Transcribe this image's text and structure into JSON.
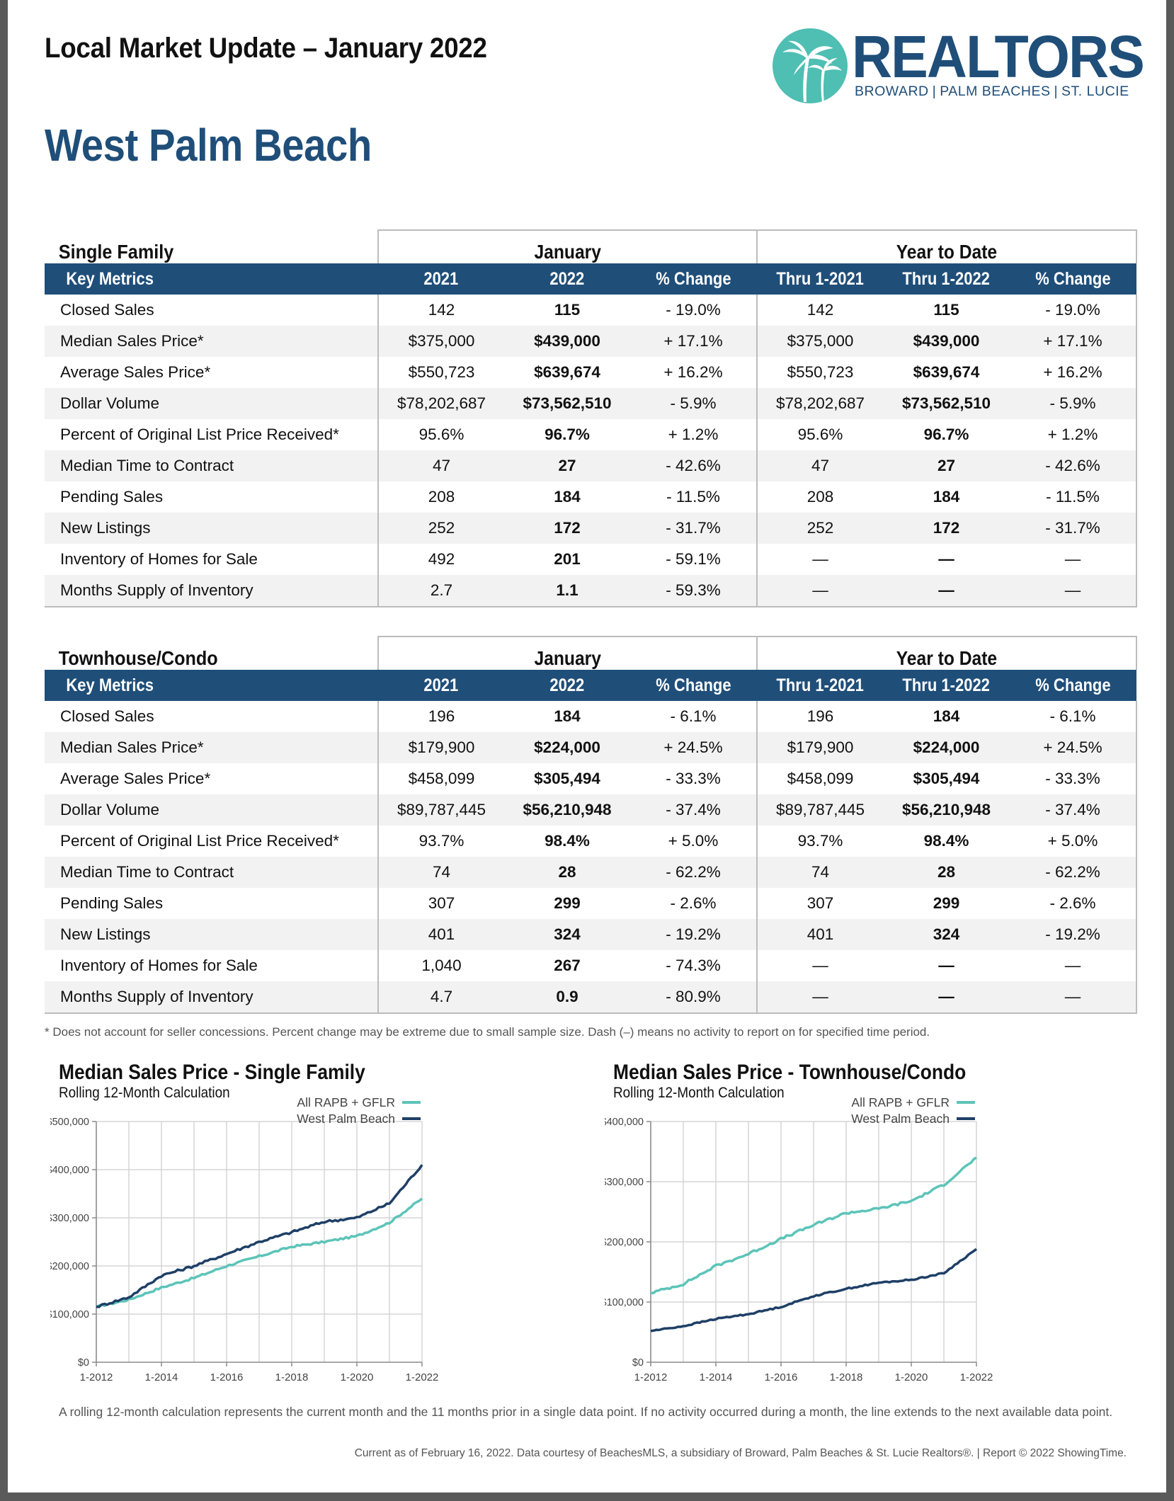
{
  "header": {
    "report_title": "Local Market Update – January 2022",
    "city": "West Palm Beach",
    "logo_word": "REALTORS",
    "logo_reg": "®",
    "logo_regions": [
      "BROWARD",
      "PALM BEACHES",
      "ST. LUCIE"
    ]
  },
  "column_groups": {
    "month": "January",
    "ytd": "Year to Date"
  },
  "columns": [
    "Key Metrics",
    "2021",
    "2022",
    "% Change",
    "Thru 1-2021",
    "Thru 1-2022",
    "% Change"
  ],
  "sections": [
    {
      "name": "Single Family",
      "rows": [
        [
          "Closed Sales",
          "142",
          "115",
          "- 19.0%",
          "142",
          "115",
          "- 19.0%"
        ],
        [
          "Median Sales Price*",
          "$375,000",
          "$439,000",
          "+ 17.1%",
          "$375,000",
          "$439,000",
          "+ 17.1%"
        ],
        [
          "Average Sales Price*",
          "$550,723",
          "$639,674",
          "+ 16.2%",
          "$550,723",
          "$639,674",
          "+ 16.2%"
        ],
        [
          "Dollar Volume",
          "$78,202,687",
          "$73,562,510",
          "- 5.9%",
          "$78,202,687",
          "$73,562,510",
          "- 5.9%"
        ],
        [
          "Percent of Original List Price Received*",
          "95.6%",
          "96.7%",
          "+ 1.2%",
          "95.6%",
          "96.7%",
          "+ 1.2%"
        ],
        [
          "Median Time to Contract",
          "47",
          "27",
          "- 42.6%",
          "47",
          "27",
          "- 42.6%"
        ],
        [
          "Pending Sales",
          "208",
          "184",
          "- 11.5%",
          "208",
          "184",
          "- 11.5%"
        ],
        [
          "New Listings",
          "252",
          "172",
          "- 31.7%",
          "252",
          "172",
          "- 31.7%"
        ],
        [
          "Inventory of Homes for Sale",
          "492",
          "201",
          "- 59.1%",
          "—",
          "—",
          "—"
        ],
        [
          "Months Supply of Inventory",
          "2.7",
          "1.1",
          "- 59.3%",
          "—",
          "—",
          "—"
        ]
      ]
    },
    {
      "name": "Townhouse/Condo",
      "rows": [
        [
          "Closed Sales",
          "196",
          "184",
          "- 6.1%",
          "196",
          "184",
          "- 6.1%"
        ],
        [
          "Median Sales Price*",
          "$179,900",
          "$224,000",
          "+ 24.5%",
          "$179,900",
          "$224,000",
          "+ 24.5%"
        ],
        [
          "Average Sales Price*",
          "$458,099",
          "$305,494",
          "- 33.3%",
          "$458,099",
          "$305,494",
          "- 33.3%"
        ],
        [
          "Dollar Volume",
          "$89,787,445",
          "$56,210,948",
          "- 37.4%",
          "$89,787,445",
          "$56,210,948",
          "- 37.4%"
        ],
        [
          "Percent of Original List Price Received*",
          "93.7%",
          "98.4%",
          "+ 5.0%",
          "93.7%",
          "98.4%",
          "+ 5.0%"
        ],
        [
          "Median Time to Contract",
          "74",
          "28",
          "- 62.2%",
          "74",
          "28",
          "- 62.2%"
        ],
        [
          "Pending Sales",
          "307",
          "299",
          "- 2.6%",
          "307",
          "299",
          "- 2.6%"
        ],
        [
          "New Listings",
          "401",
          "324",
          "- 19.2%",
          "401",
          "324",
          "- 19.2%"
        ],
        [
          "Inventory of Homes for Sale",
          "1,040",
          "267",
          "- 74.3%",
          "—",
          "—",
          "—"
        ],
        [
          "Months Supply of Inventory",
          "4.7",
          "0.9",
          "- 80.9%",
          "—",
          "—",
          "—"
        ]
      ]
    }
  ],
  "footnote": "* Does not account for seller concessions. Percent change may be extreme due to small sample size. Dash (–) means no activity to report on for specified time period.",
  "chart_data": [
    {
      "type": "line",
      "title": "Median Sales Price - Single Family",
      "subtitle": "Rolling 12-Month Calculation",
      "legend_position": "top-right",
      "grid": true,
      "x": [
        "1-2012",
        "1-2013",
        "1-2014",
        "1-2015",
        "1-2016",
        "1-2017",
        "1-2018",
        "1-2019",
        "1-2020",
        "1-2021",
        "1-2022"
      ],
      "xticks": [
        "1-2012",
        "1-2014",
        "1-2016",
        "1-2018",
        "1-2020",
        "1-2022"
      ],
      "ylim": [
        0,
        500000
      ],
      "yticks": [
        0,
        100000,
        200000,
        300000,
        400000,
        500000
      ],
      "ytick_labels": [
        "$0",
        "$100,000",
        "$200,000",
        "$300,000",
        "$400,000",
        "$500,000"
      ],
      "series": [
        {
          "name": "All RAPB + GFLR",
          "color": "#5cc4b8",
          "values": [
            115000,
            130000,
            155000,
            175000,
            200000,
            220000,
            240000,
            250000,
            262000,
            290000,
            340000
          ]
        },
        {
          "name": "West Palm Beach",
          "color": "#1e3f66",
          "values": [
            115000,
            135000,
            180000,
            200000,
            225000,
            250000,
            270000,
            292000,
            300000,
            330000,
            410000
          ]
        }
      ]
    },
    {
      "type": "line",
      "title": "Median Sales Price - Townhouse/Condo",
      "subtitle": "Rolling 12-Month Calculation",
      "legend_position": "top-right",
      "grid": true,
      "x": [
        "1-2012",
        "1-2013",
        "1-2014",
        "1-2015",
        "1-2016",
        "1-2017",
        "1-2018",
        "1-2019",
        "1-2020",
        "1-2021",
        "1-2022"
      ],
      "xticks": [
        "1-2012",
        "1-2014",
        "1-2016",
        "1-2018",
        "1-2020",
        "1-2022"
      ],
      "ylim": [
        0,
        400000
      ],
      "yticks": [
        0,
        100000,
        200000,
        300000,
        400000
      ],
      "ytick_labels": [
        "$0",
        "$100,000",
        "$200,000",
        "$300,000",
        "$400,000"
      ],
      "series": [
        {
          "name": "All RAPB + GFLR",
          "color": "#5cc4b8",
          "values": [
            115000,
            130000,
            160000,
            180000,
            205000,
            228000,
            248000,
            255000,
            268000,
            295000,
            340000
          ]
        },
        {
          "name": "West Palm Beach",
          "color": "#1e3f66",
          "values": [
            52000,
            60000,
            72000,
            80000,
            92000,
            110000,
            122000,
            132000,
            137000,
            148000,
            188000
          ]
        }
      ]
    }
  ],
  "bottom_note": "A rolling 12-month calculation represents the current month and the 11 months prior in a single data point. If no activity occurred during a month, the line extends to the next available data point.",
  "credit": "Current as of February 16, 2022. Data courtesy of BeachesMLS, a subsidiary of Broward, Palm Beaches & St. Lucie Realtors®. | Report © 2022 ShowingTime."
}
